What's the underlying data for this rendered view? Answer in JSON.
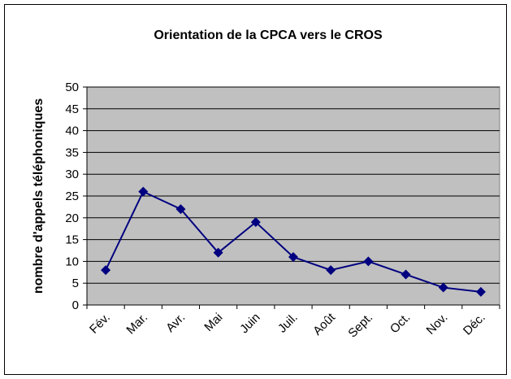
{
  "chart_data": {
    "type": "line",
    "title": "Orientation de la CPCA vers le CROS",
    "y_label": "nombre d'appels téléphoniques",
    "categories": [
      "Fév.",
      "Mar.",
      "Avr.",
      "Mai",
      "Juin",
      "Juil.",
      "Août",
      "Sept.",
      "Oct.",
      "Nov.",
      "Déc."
    ],
    "values": [
      8,
      26,
      22,
      12,
      19,
      11,
      8,
      10,
      7,
      4,
      3
    ],
    "color": "#000080",
    "ylim": [
      0,
      50
    ],
    "yticks": [
      0,
      5,
      10,
      15,
      20,
      25,
      30,
      35,
      40,
      45,
      50
    ],
    "grid": true
  }
}
